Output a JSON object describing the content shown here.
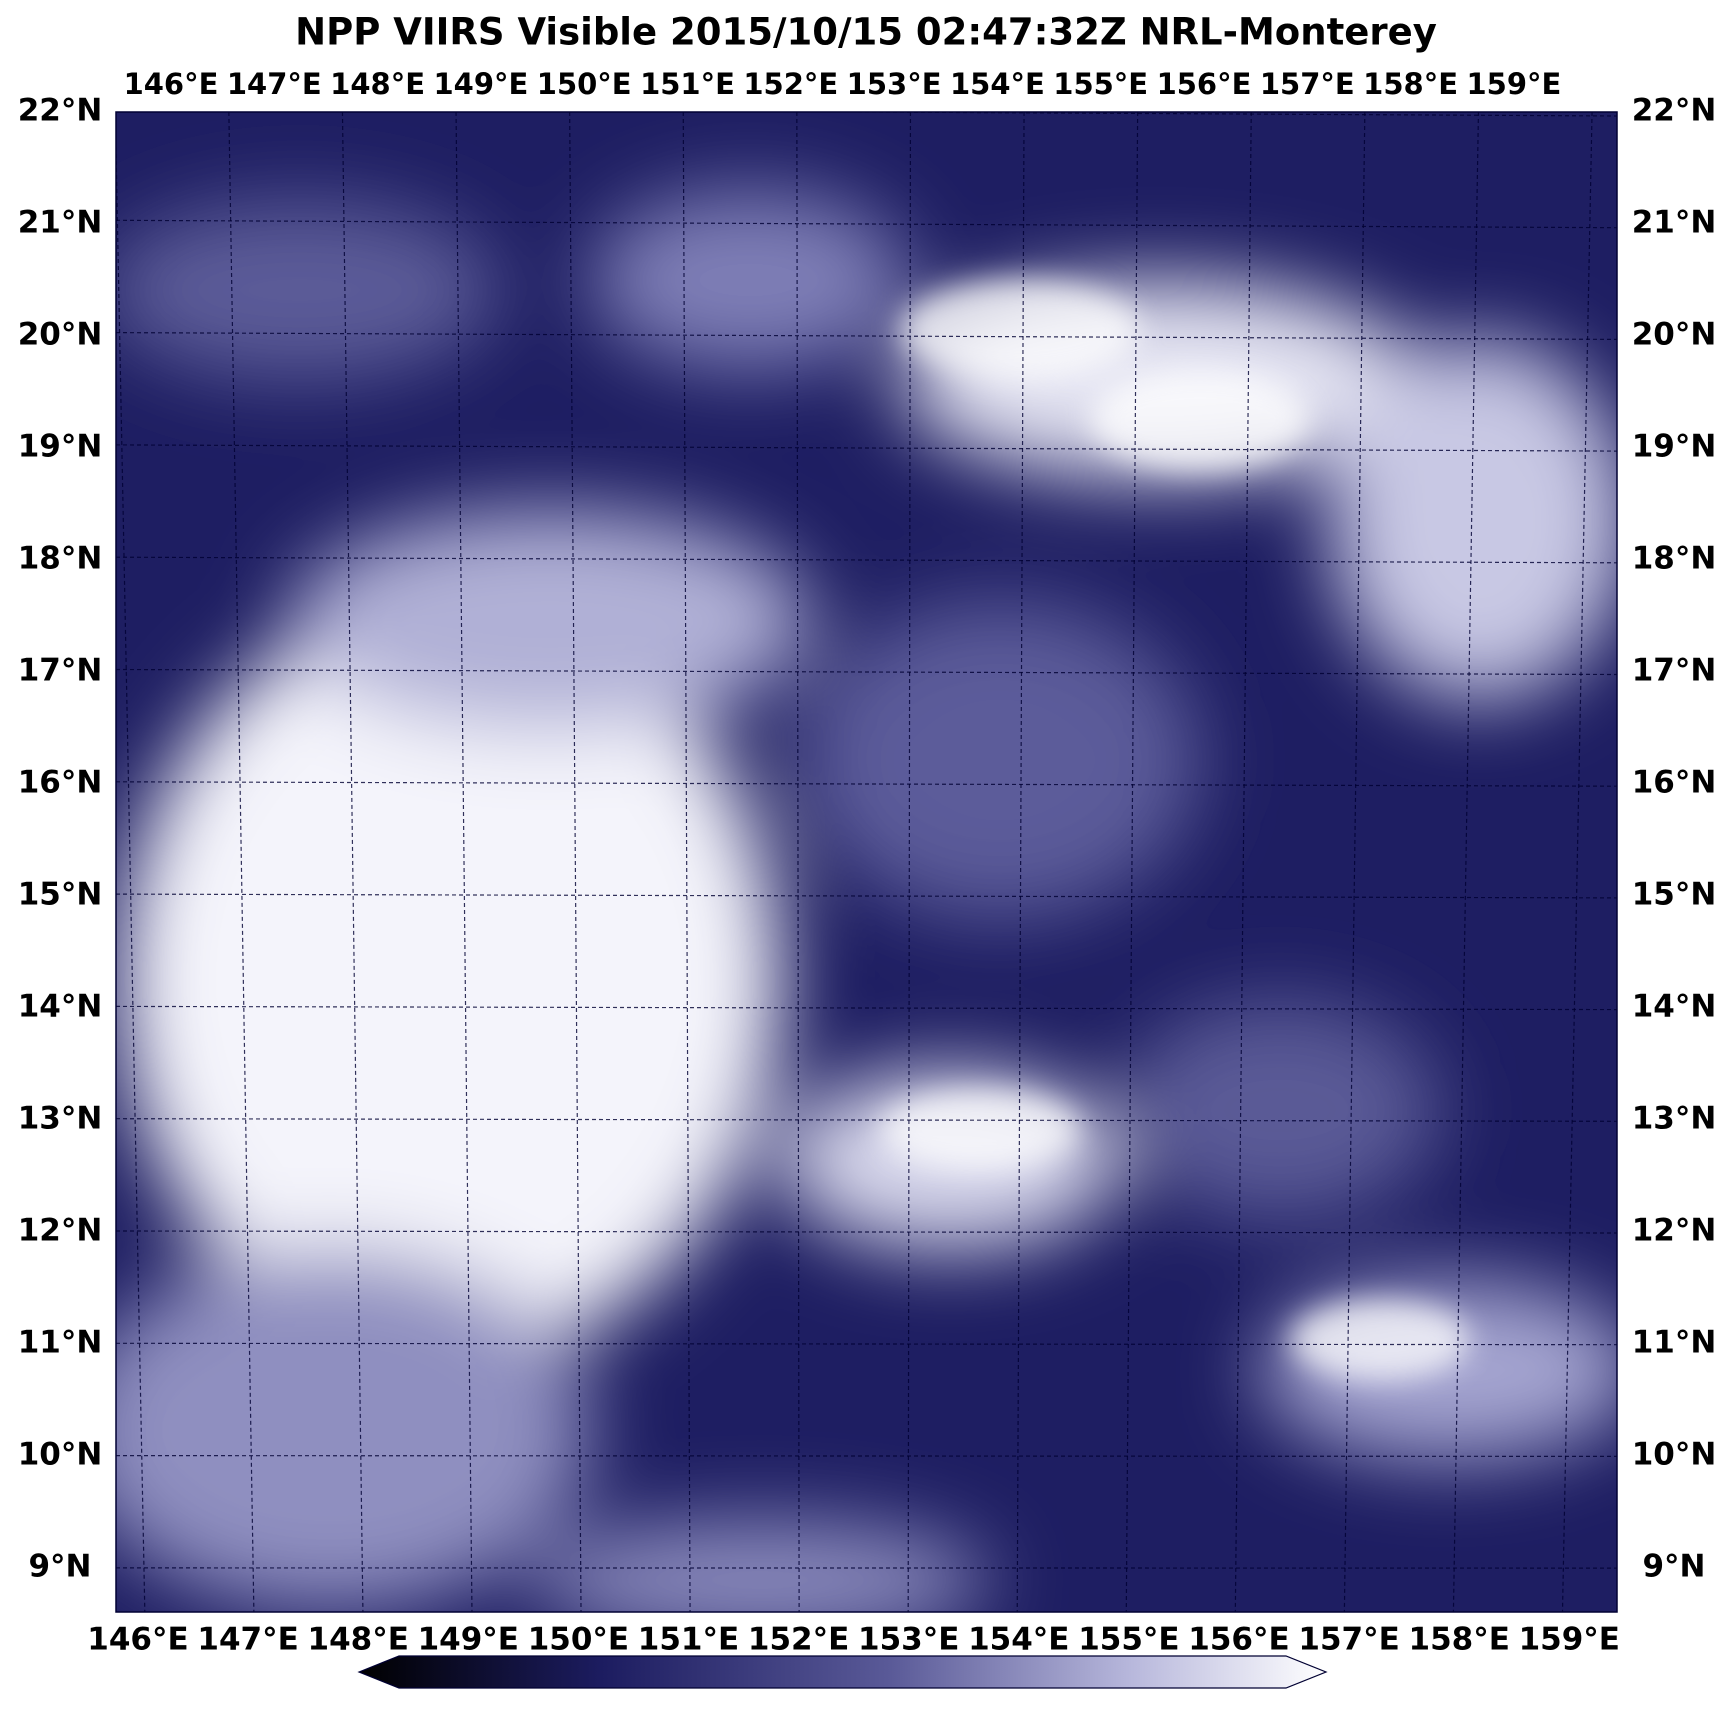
{
  "title": "NPP VIIRS Visible 2015/10/15 02:47:32Z NRL-Monterey",
  "top_labels": [
    "146°E",
    "147°E",
    "148°E",
    "149°E",
    "150°E",
    "151°E",
    "152°E",
    "153°E",
    "154°E",
    "155°E",
    "156°E",
    "157°E",
    "158°E",
    "159°E"
  ],
  "bottom_labels": [
    "146°E",
    "147°E",
    "148°E",
    "149°E",
    "150°E",
    "151°E",
    "152°E",
    "153°E",
    "154°E",
    "155°E",
    "156°E",
    "157°E",
    "158°E",
    "159°E"
  ],
  "left_labels": [
    "22°N",
    "21°N",
    "20°N",
    "19°N",
    "18°N",
    "17°N",
    "16°N",
    "15°N",
    "14°N",
    "13°N",
    "12°N",
    "11°N",
    "10°N",
    "9°N"
  ],
  "right_labels": [
    "22°N",
    "21°N",
    "20°N",
    "19°N",
    "18°N",
    "17°N",
    "16°N",
    "15°N",
    "14°N",
    "13°N",
    "12°N",
    "11°N",
    "10°N",
    "9°N"
  ]
}
